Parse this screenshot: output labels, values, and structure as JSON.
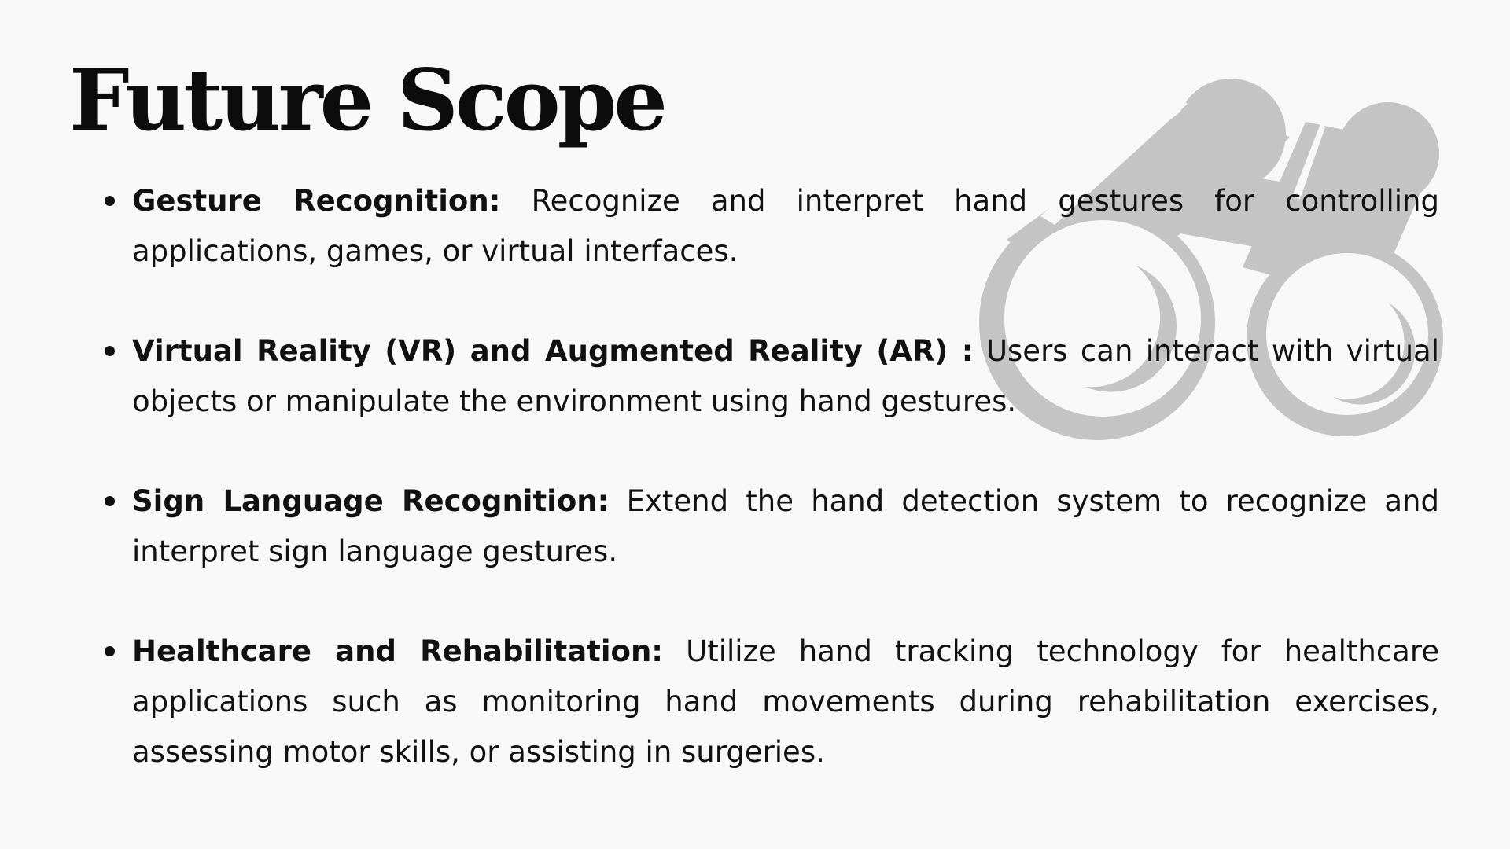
{
  "slide": {
    "title": "Future Scope",
    "icon": "binoculars-icon",
    "icon_color": "#c4c4c4",
    "points": [
      {
        "heading": "Gesture Recognition:",
        "text": "Recognize and interpret hand gestures for controlling applications,    games, or virtual interfaces."
      },
      {
        "heading": "Virtual Reality (VR) and Augmented Reality (AR) :",
        "text": "Users can interact with virtual objects or manipulate the environment using hand gestures."
      },
      {
        "heading": "Sign Language Recognition:",
        "text": "Extend the hand detection system to recognize and interpret sign language gestures."
      },
      {
        "heading": "Healthcare and Rehabilitation:",
        "text": "Utilize hand tracking technology for healthcare applications such as monitoring hand movements during rehabilitation exercises, assessing motor skills, or assisting in surgeries."
      }
    ]
  }
}
